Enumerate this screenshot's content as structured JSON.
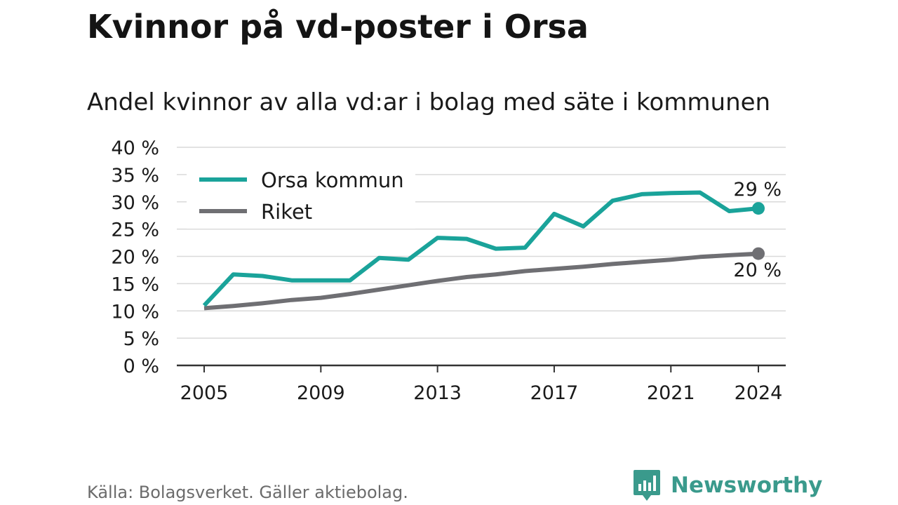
{
  "title": "Kvinnor på vd-poster i Orsa",
  "subtitle": "Andel kvinnor av alla vd:ar i bolag med säte i kommunen",
  "source": "Källa: Bolagsverket. Gäller aktiebolag.",
  "brand": {
    "name": "Newsworthy",
    "icon": "bar-chart-speech-bubble-icon",
    "color": "#3a9a8c"
  },
  "colors": {
    "orsa": "#1aa39a",
    "riket": "#6f6f73",
    "grid": "#d9d9d9",
    "axis": "#333333"
  },
  "chart_data": {
    "type": "line",
    "x": [
      2005,
      2006,
      2007,
      2008,
      2009,
      2010,
      2011,
      2012,
      2013,
      2014,
      2015,
      2016,
      2017,
      2018,
      2019,
      2020,
      2021,
      2022,
      2023,
      2024
    ],
    "series": [
      {
        "name": "Orsa kommun",
        "color": "#1aa39a",
        "values": [
          11.0,
          16.7,
          16.4,
          15.6,
          15.6,
          15.6,
          19.7,
          19.4,
          23.4,
          23.2,
          21.4,
          21.6,
          27.8,
          25.5,
          30.2,
          31.4,
          31.6,
          31.7,
          28.3,
          28.8
        ],
        "end_label": "29 %"
      },
      {
        "name": "Riket",
        "color": "#6f6f73",
        "values": [
          10.5,
          10.9,
          11.4,
          12.0,
          12.4,
          13.1,
          13.9,
          14.7,
          15.5,
          16.2,
          16.7,
          17.3,
          17.7,
          18.1,
          18.6,
          19.0,
          19.4,
          19.9,
          20.2,
          20.5
        ],
        "end_label": "20 %"
      }
    ],
    "ylim": [
      0,
      40
    ],
    "yticks": [
      0,
      5,
      10,
      15,
      20,
      25,
      30,
      35,
      40
    ],
    "ytick_labels": [
      "0 %",
      "5 %",
      "10 %",
      "15 %",
      "20 %",
      "25 %",
      "30 %",
      "35 %",
      "40 %"
    ],
    "xticks": [
      2005,
      2009,
      2013,
      2017,
      2021,
      2024
    ],
    "xtick_labels": [
      "2005",
      "2009",
      "2013",
      "2017",
      "2021",
      "2024"
    ],
    "xlabel": "",
    "ylabel": "",
    "grid": true,
    "legend_position": "top-left"
  }
}
